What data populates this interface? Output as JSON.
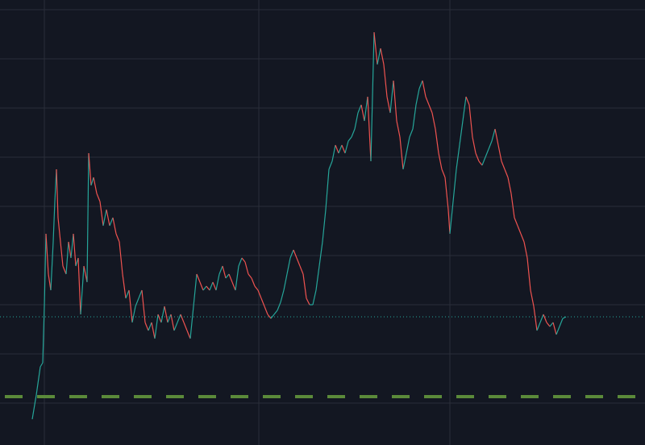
{
  "chart_data": {
    "type": "line",
    "x": [
      40,
      45,
      50,
      53,
      55,
      57,
      60,
      63,
      66,
      68,
      70,
      72,
      75,
      78,
      82,
      85,
      88,
      91,
      94,
      97,
      100,
      104,
      108,
      110,
      113,
      116,
      120,
      124,
      128,
      132,
      136,
      140,
      144,
      148,
      152,
      156,
      160,
      164,
      168,
      172,
      176,
      180,
      184,
      188,
      192,
      196,
      200,
      204,
      208,
      212,
      216,
      220,
      224,
      228,
      232,
      236,
      240,
      244,
      248,
      252,
      256,
      260,
      264,
      268,
      272,
      276,
      280,
      284,
      288,
      292,
      296,
      300,
      304,
      308,
      312,
      316,
      320,
      324,
      328,
      332,
      336,
      340,
      344,
      348,
      352,
      356,
      360,
      364,
      368,
      372,
      376,
      380,
      384,
      388,
      392,
      396,
      400,
      404,
      408,
      412,
      416,
      420,
      424,
      428,
      432,
      436,
      440,
      444,
      448,
      452,
      456,
      460,
      464,
      468,
      472,
      476,
      480,
      484,
      488,
      492,
      496,
      500,
      504,
      508,
      512,
      516,
      520,
      524,
      528,
      532,
      536,
      540,
      544,
      548,
      552,
      556,
      558,
      562,
      566,
      570,
      574,
      578,
      582,
      586,
      590,
      594,
      598,
      602,
      606,
      610,
      614,
      618,
      622,
      626,
      630,
      634,
      638,
      642,
      646,
      650,
      654,
      658,
      662,
      666,
      670,
      674,
      678,
      682,
      686,
      690,
      694,
      698,
      702
    ],
    "values": [
      -20,
      10,
      45,
      50,
      120,
      210,
      160,
      140,
      200,
      250,
      290,
      230,
      200,
      170,
      160,
      200,
      180,
      210,
      170,
      180,
      110,
      170,
      150,
      310,
      270,
      280,
      260,
      250,
      220,
      240,
      220,
      230,
      210,
      200,
      160,
      130,
      140,
      100,
      120,
      130,
      140,
      100,
      90,
      100,
      80,
      110,
      100,
      120,
      100,
      110,
      90,
      100,
      110,
      100,
      90,
      80,
      120,
      160,
      150,
      140,
      145,
      140,
      150,
      140,
      160,
      170,
      155,
      160,
      150,
      140,
      170,
      180,
      175,
      160,
      155,
      145,
      140,
      130,
      120,
      110,
      105,
      110,
      115,
      125,
      140,
      160,
      180,
      190,
      180,
      170,
      160,
      130,
      122,
      122,
      140,
      170,
      200,
      240,
      290,
      300,
      320,
      310,
      320,
      310,
      325,
      330,
      340,
      360,
      370,
      350,
      380,
      300,
      460,
      420,
      440,
      420,
      380,
      360,
      400,
      350,
      330,
      290,
      310,
      330,
      340,
      370,
      390,
      400,
      380,
      370,
      360,
      340,
      310,
      290,
      280,
      240,
      210,
      250,
      290,
      320,
      350,
      380,
      370,
      330,
      310,
      300,
      295,
      305,
      315,
      325,
      340,
      320,
      300,
      290,
      280,
      260,
      230,
      220,
      210,
      200,
      180,
      140,
      120,
      90,
      100,
      110,
      100,
      95,
      100,
      85,
      95,
      105,
      107
    ],
    "up_color": "#26a69a",
    "down_color": "#ef5350",
    "xlim": [
      0,
      800
    ],
    "xticks": [
      55,
      321,
      558
    ],
    "ylim": [
      -52,
      500
    ],
    "yticks": [
      0,
      61,
      122,
      183,
      244,
      305,
      366,
      427,
      488
    ],
    "grid": true,
    "grid_color": "#2a2e39",
    "last_price": 107,
    "last_price_color": "#26a69a",
    "level": 8,
    "level_color": "#5b8a3a"
  }
}
